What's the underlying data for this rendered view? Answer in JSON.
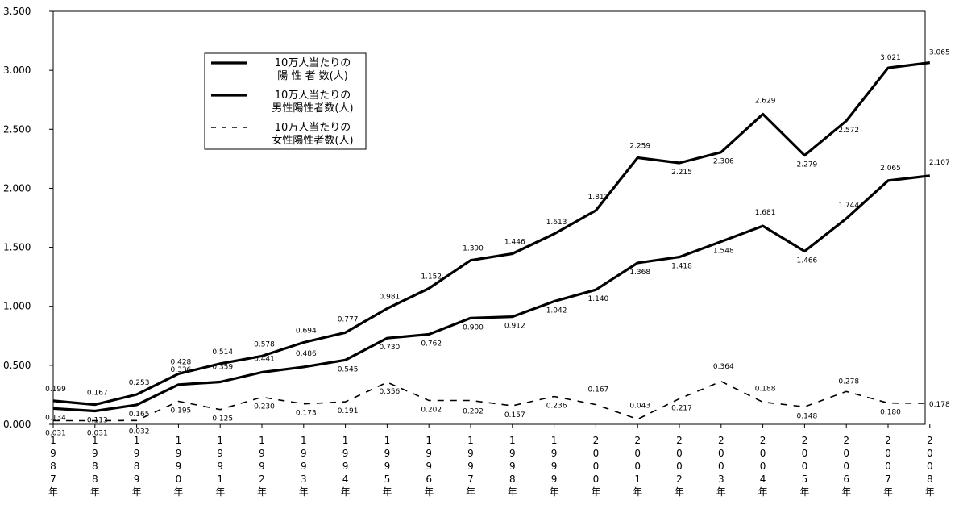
{
  "chart_data": {
    "type": "line",
    "x": [
      "1987年",
      "1988年",
      "1989年",
      "1990年",
      "1991年",
      "1992年",
      "1993年",
      "1994年",
      "1995年",
      "1996年",
      "1997年",
      "1998年",
      "1999年",
      "2000年",
      "2001年",
      "2002年",
      "2003年",
      "2004年",
      "2005年",
      "2006年",
      "2007年",
      "2008年"
    ],
    "x_label_chars": [
      [
        "1",
        "9",
        "8",
        "7",
        "年"
      ],
      [
        "1",
        "9",
        "8",
        "8",
        "年"
      ],
      [
        "1",
        "9",
        "8",
        "9",
        "年"
      ],
      [
        "1",
        "9",
        "9",
        "0",
        "年"
      ],
      [
        "1",
        "9",
        "9",
        "1",
        "年"
      ],
      [
        "1",
        "9",
        "9",
        "2",
        "年"
      ],
      [
        "1",
        "9",
        "9",
        "3",
        "年"
      ],
      [
        "1",
        "9",
        "9",
        "4",
        "年"
      ],
      [
        "1",
        "9",
        "9",
        "5",
        "年"
      ],
      [
        "1",
        "9",
        "9",
        "6",
        "年"
      ],
      [
        "1",
        "9",
        "9",
        "7",
        "年"
      ],
      [
        "1",
        "9",
        "9",
        "8",
        "年"
      ],
      [
        "1",
        "9",
        "9",
        "9",
        "年"
      ],
      [
        "2",
        "0",
        "0",
        "0",
        "年"
      ],
      [
        "2",
        "0",
        "0",
        "1",
        "年"
      ],
      [
        "2",
        "0",
        "0",
        "2",
        "年"
      ],
      [
        "2",
        "0",
        "0",
        "3",
        "年"
      ],
      [
        "2",
        "0",
        "0",
        "4",
        "年"
      ],
      [
        "2",
        "0",
        "0",
        "5",
        "年"
      ],
      [
        "2",
        "0",
        "0",
        "6",
        "年"
      ],
      [
        "2",
        "0",
        "0",
        "7",
        "年"
      ],
      [
        "2",
        "0",
        "0",
        "8",
        "年"
      ]
    ],
    "y_ticks": [
      "0.000",
      "0.500",
      "1.000",
      "1.500",
      "2.000",
      "2.500",
      "3.000",
      "3.500"
    ],
    "ylim": [
      0,
      3.5
    ],
    "grid": false,
    "legend_position": "top-left",
    "series": [
      {
        "name": "10万人当たりの\n陽 性 者 数(人)",
        "legend_lines": [
          "10万人当たりの",
          "陽 性 者 数(人)"
        ],
        "style": "solid",
        "values": [
          0.134,
          0.113,
          0.165,
          0.336,
          0.359,
          0.441,
          0.486,
          0.545,
          0.73,
          0.762,
          0.9,
          0.912,
          1.042,
          1.14,
          1.368,
          1.418,
          1.548,
          1.681,
          1.466,
          1.744,
          2.065,
          2.107
        ],
        "labels": [
          "0.134",
          "0.113",
          "0.165",
          "0.336",
          "0.359",
          "0.441",
          "0.486",
          "0.545",
          "0.730",
          "0.762",
          "0.900",
          "0.912",
          "1.042",
          "1.140",
          "1.368",
          "1.418",
          "1.548",
          "1.681",
          "1.466",
          "1.744",
          "2.065",
          "2.107"
        ]
      },
      {
        "name": "10万人当たりの\n男性陽性者数(人)",
        "legend_lines": [
          "10万人当たりの",
          "男性陽性者数(人)"
        ],
        "style": "solid",
        "values": [
          0.199,
          0.167,
          0.253,
          0.428,
          0.514,
          0.578,
          0.694,
          0.777,
          0.981,
          1.152,
          1.39,
          1.446,
          1.613,
          1.812,
          2.259,
          2.215,
          2.306,
          2.629,
          2.279,
          2.572,
          3.021,
          3.065
        ],
        "labels": [
          "0.199",
          "0.167",
          "0.253",
          "0.428",
          "0.514",
          "0.578",
          "0.694",
          "0.777",
          "0.981",
          "1.152",
          "1.390",
          "1.446",
          "1.613",
          "1.812",
          "2.259",
          "2.215",
          "2.306",
          "2.629",
          "2.279",
          "2.572",
          "3.021",
          "3.065"
        ]
      },
      {
        "name": "10万人当たりの\n女性陽性者数(人)",
        "legend_lines": [
          "10万人当たりの",
          "女性陽性者数(人)"
        ],
        "style": "dashed",
        "values": [
          0.031,
          0.031,
          0.032,
          0.195,
          0.125,
          0.23,
          0.173,
          0.191,
          0.356,
          0.202,
          0.202,
          0.157,
          0.236,
          0.167,
          0.043,
          0.217,
          0.364,
          0.188,
          0.148,
          0.278,
          0.18,
          0.178
        ],
        "labels": [
          "0.031",
          "0.031",
          "0.032",
          "0.195",
          "0.125",
          "0.230",
          "0.173",
          "0.191",
          "0.356",
          "0.202",
          "0.202",
          "0.157",
          "0.236",
          "0.167",
          "0.043",
          "0.217",
          "0.364",
          "0.188",
          "0.148",
          "0.278",
          "0.180",
          "0.178"
        ]
      }
    ]
  }
}
